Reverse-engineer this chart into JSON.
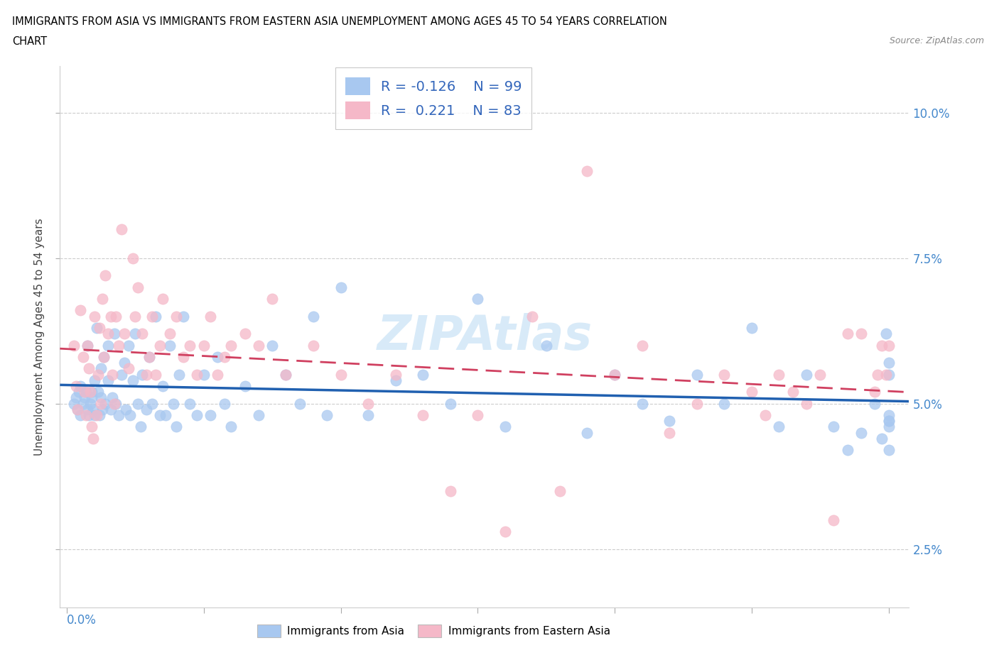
{
  "title_line1": "IMMIGRANTS FROM ASIA VS IMMIGRANTS FROM EASTERN ASIA UNEMPLOYMENT AMONG AGES 45 TO 54 YEARS CORRELATION",
  "title_line2": "CHART",
  "source": "Source: ZipAtlas.com",
  "ylabel": "Unemployment Among Ages 45 to 54 years",
  "yticks": [
    "2.5%",
    "5.0%",
    "7.5%",
    "10.0%"
  ],
  "ytick_vals": [
    0.025,
    0.05,
    0.075,
    0.1
  ],
  "xlim": [
    -0.005,
    0.615
  ],
  "ylim": [
    0.015,
    0.108
  ],
  "color_asia": "#a8c8f0",
  "color_eastern": "#f5b8c8",
  "color_line_asia": "#2060b0",
  "color_line_eastern": "#d04060",
  "watermark_color": "#d8eaf8",
  "asia_x": [
    0.005,
    0.007,
    0.008,
    0.009,
    0.01,
    0.01,
    0.012,
    0.013,
    0.014,
    0.015,
    0.015,
    0.016,
    0.017,
    0.018,
    0.018,
    0.019,
    0.02,
    0.02,
    0.022,
    0.023,
    0.024,
    0.025,
    0.025,
    0.026,
    0.027,
    0.028,
    0.03,
    0.03,
    0.032,
    0.033,
    0.035,
    0.036,
    0.038,
    0.04,
    0.042,
    0.043,
    0.045,
    0.046,
    0.048,
    0.05,
    0.052,
    0.054,
    0.055,
    0.058,
    0.06,
    0.062,
    0.065,
    0.068,
    0.07,
    0.072,
    0.075,
    0.078,
    0.08,
    0.082,
    0.085,
    0.09,
    0.095,
    0.1,
    0.105,
    0.11,
    0.115,
    0.12,
    0.13,
    0.14,
    0.15,
    0.16,
    0.17,
    0.18,
    0.19,
    0.2,
    0.22,
    0.24,
    0.26,
    0.28,
    0.3,
    0.32,
    0.35,
    0.38,
    0.4,
    0.42,
    0.44,
    0.46,
    0.48,
    0.5,
    0.52,
    0.54,
    0.56,
    0.57,
    0.58,
    0.59,
    0.595,
    0.598,
    0.6,
    0.6,
    0.6,
    0.6,
    0.6,
    0.6,
    0.6
  ],
  "asia_y": [
    0.05,
    0.051,
    0.049,
    0.052,
    0.053,
    0.048,
    0.05,
    0.051,
    0.052,
    0.049,
    0.06,
    0.048,
    0.05,
    0.052,
    0.051,
    0.049,
    0.048,
    0.054,
    0.063,
    0.052,
    0.048,
    0.056,
    0.051,
    0.049,
    0.058,
    0.05,
    0.06,
    0.054,
    0.049,
    0.051,
    0.062,
    0.05,
    0.048,
    0.055,
    0.057,
    0.049,
    0.06,
    0.048,
    0.054,
    0.062,
    0.05,
    0.046,
    0.055,
    0.049,
    0.058,
    0.05,
    0.065,
    0.048,
    0.053,
    0.048,
    0.06,
    0.05,
    0.046,
    0.055,
    0.065,
    0.05,
    0.048,
    0.055,
    0.048,
    0.058,
    0.05,
    0.046,
    0.053,
    0.048,
    0.06,
    0.055,
    0.05,
    0.065,
    0.048,
    0.07,
    0.048,
    0.054,
    0.055,
    0.05,
    0.068,
    0.046,
    0.06,
    0.045,
    0.055,
    0.05,
    0.047,
    0.055,
    0.05,
    0.063,
    0.046,
    0.055,
    0.046,
    0.042,
    0.045,
    0.05,
    0.044,
    0.062,
    0.046,
    0.048,
    0.042,
    0.055,
    0.047,
    0.057,
    0.047
  ],
  "eastern_x": [
    0.005,
    0.007,
    0.008,
    0.01,
    0.012,
    0.013,
    0.014,
    0.015,
    0.016,
    0.017,
    0.018,
    0.019,
    0.02,
    0.022,
    0.023,
    0.024,
    0.025,
    0.026,
    0.027,
    0.028,
    0.03,
    0.032,
    0.033,
    0.035,
    0.036,
    0.038,
    0.04,
    0.042,
    0.045,
    0.048,
    0.05,
    0.052,
    0.055,
    0.058,
    0.06,
    0.062,
    0.065,
    0.068,
    0.07,
    0.075,
    0.08,
    0.085,
    0.09,
    0.095,
    0.1,
    0.105,
    0.11,
    0.115,
    0.12,
    0.13,
    0.14,
    0.15,
    0.16,
    0.18,
    0.2,
    0.22,
    0.24,
    0.26,
    0.28,
    0.3,
    0.32,
    0.34,
    0.36,
    0.38,
    0.4,
    0.42,
    0.44,
    0.46,
    0.48,
    0.5,
    0.51,
    0.52,
    0.53,
    0.54,
    0.55,
    0.56,
    0.57,
    0.58,
    0.59,
    0.592,
    0.595,
    0.598,
    0.6
  ],
  "eastern_y": [
    0.06,
    0.053,
    0.049,
    0.066,
    0.058,
    0.052,
    0.048,
    0.06,
    0.056,
    0.052,
    0.046,
    0.044,
    0.065,
    0.048,
    0.055,
    0.063,
    0.05,
    0.068,
    0.058,
    0.072,
    0.062,
    0.065,
    0.055,
    0.05,
    0.065,
    0.06,
    0.08,
    0.062,
    0.056,
    0.075,
    0.065,
    0.07,
    0.062,
    0.055,
    0.058,
    0.065,
    0.055,
    0.06,
    0.068,
    0.062,
    0.065,
    0.058,
    0.06,
    0.055,
    0.06,
    0.065,
    0.055,
    0.058,
    0.06,
    0.062,
    0.06,
    0.068,
    0.055,
    0.06,
    0.055,
    0.05,
    0.055,
    0.048,
    0.035,
    0.048,
    0.028,
    0.065,
    0.035,
    0.09,
    0.055,
    0.06,
    0.045,
    0.05,
    0.055,
    0.052,
    0.048,
    0.055,
    0.052,
    0.05,
    0.055,
    0.03,
    0.062,
    0.062,
    0.052,
    0.055,
    0.06,
    0.055,
    0.06
  ]
}
